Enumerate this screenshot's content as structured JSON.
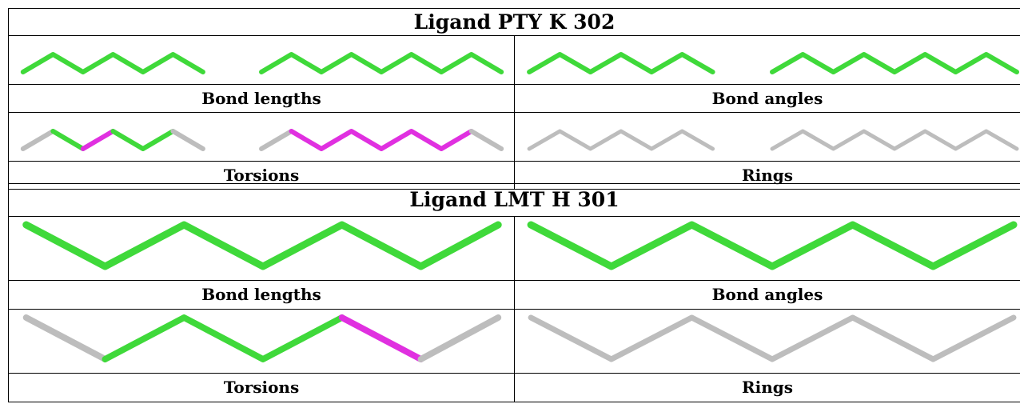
{
  "tables": [
    {
      "title": "Ligand PTY K 302",
      "panels": {
        "bond_lengths": "Bond lengths",
        "bond_angles": "Bond angles",
        "torsions": "Torsions",
        "rings": "Rings"
      }
    },
    {
      "title": "Ligand LMT H 301",
      "panels": {
        "bond_lengths": "Bond lengths",
        "bond_angles": "Bond angles",
        "torsions": "Torsions",
        "rings": "Rings"
      }
    }
  ],
  "colors": {
    "green": "#3fd93a",
    "magenta": "#e030e0",
    "grey": "#bdbdbd"
  },
  "icons": [
    "zigzag-bond-chain-image"
  ]
}
